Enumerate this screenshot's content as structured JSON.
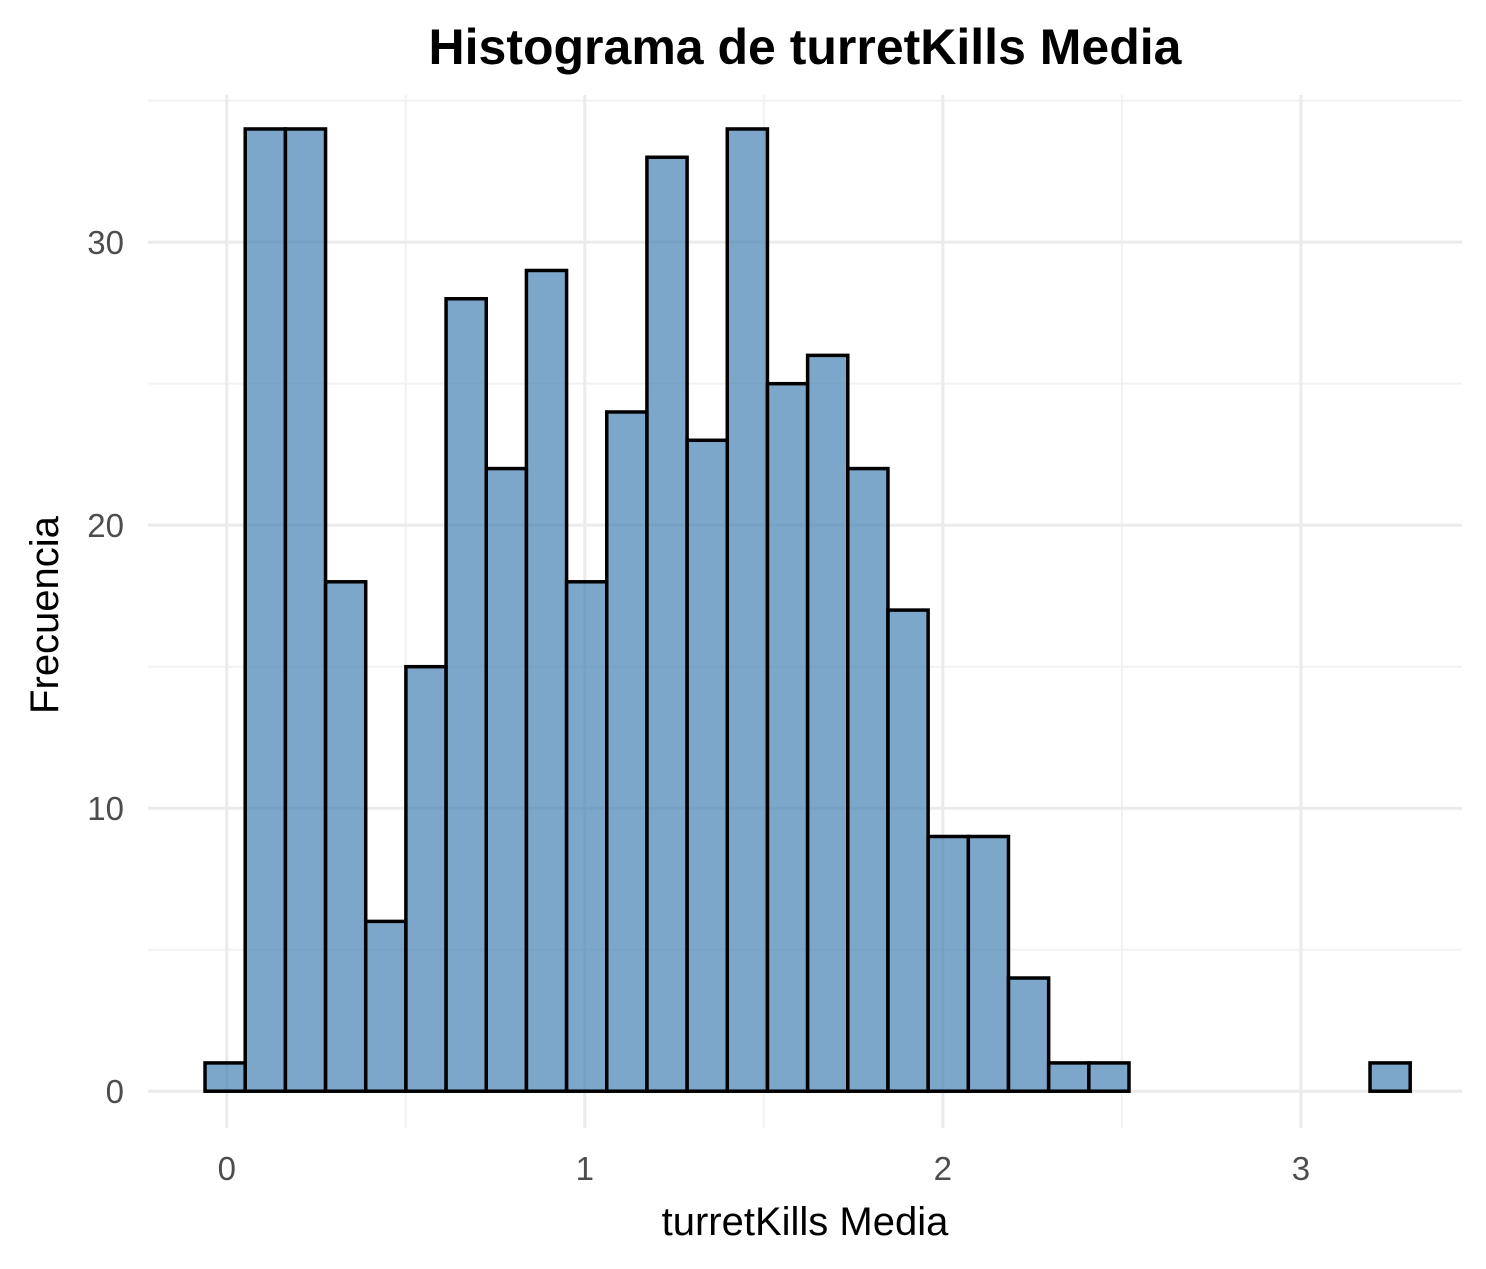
{
  "chart_data": {
    "type": "bar",
    "title": "Histograma de turretKills Media",
    "xlabel": "turretKills Media",
    "ylabel": "Frecuencia",
    "xlim": [
      -0.22,
      3.45
    ],
    "ylim": [
      -1.3,
      35.2
    ],
    "x_ticks": [
      0,
      1,
      2,
      3
    ],
    "y_ticks": [
      0,
      10,
      20,
      30
    ],
    "grid": true,
    "bin_width": 0.1122,
    "bin_start": -0.0607,
    "values": [
      1,
      34,
      34,
      18,
      6,
      15,
      28,
      22,
      29,
      18,
      24,
      33,
      23,
      34,
      25,
      26,
      22,
      17,
      9,
      9,
      4,
      1,
      1,
      0,
      0,
      0,
      0,
      0,
      0,
      1
    ],
    "fill_color": "#4682b4",
    "border_color": "#000000"
  }
}
